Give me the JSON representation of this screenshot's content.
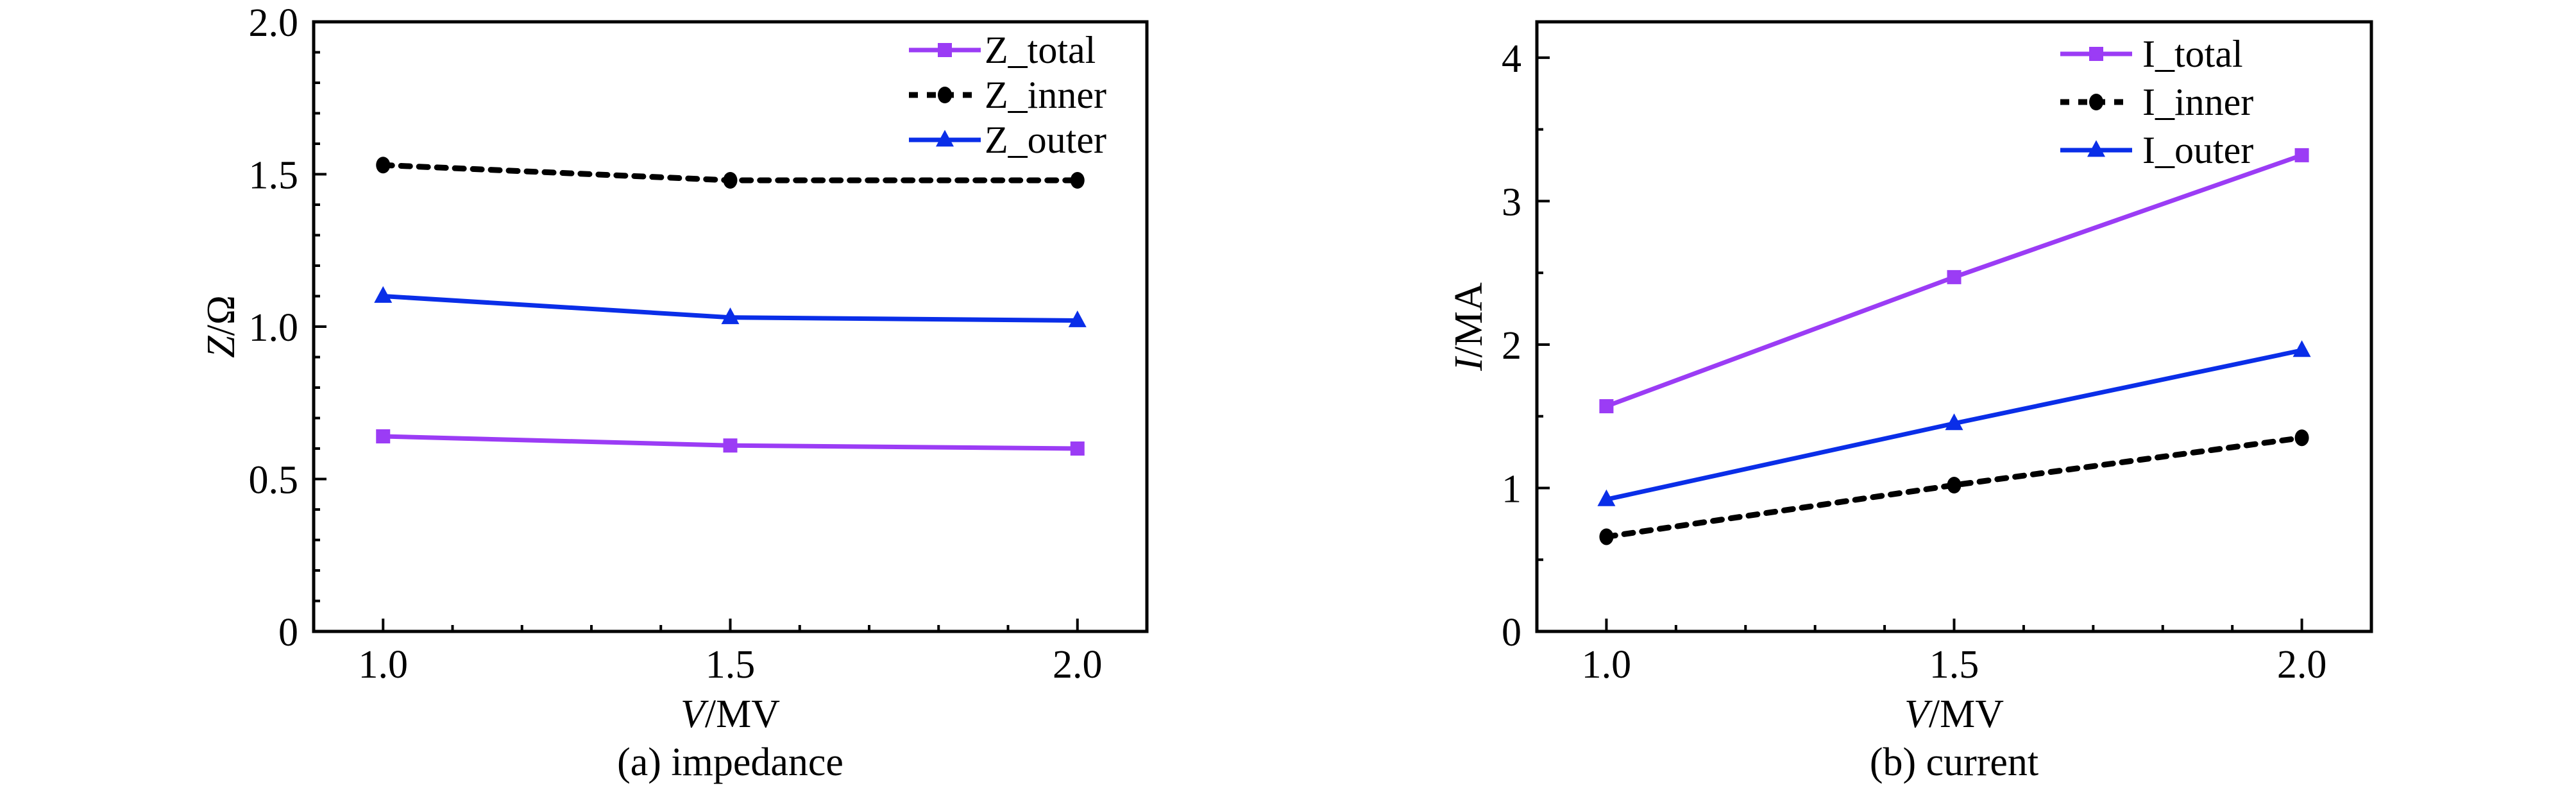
{
  "chart_data": [
    {
      "id": "impedance",
      "type": "line",
      "caption": "(a) impedance",
      "xlabel": {
        "italic": "V",
        "rest": "/MV"
      },
      "ylabel": {
        "italic": "Z",
        "rest": "/Ω"
      },
      "xlim": [
        0.9,
        2.1
      ],
      "ylim": [
        0,
        2.0
      ],
      "x_ticks": [
        1.0,
        1.5,
        2.0
      ],
      "x_tick_labels": [
        "1.0",
        "1.5",
        "2.0"
      ],
      "x_minor_step": 0.1,
      "y_ticks": [
        0,
        0.5,
        1.0,
        1.5,
        2.0
      ],
      "y_tick_labels": [
        "0",
        "0.5",
        "1.0",
        "1.5",
        "2.0"
      ],
      "y_minor_step": 0.1,
      "grid": false,
      "legend_position": "top-right",
      "x": [
        1.0,
        1.5,
        2.0
      ],
      "series": [
        {
          "name": "Z_total",
          "values": [
            0.64,
            0.61,
            0.6
          ],
          "color": "#9b3cf5",
          "marker": "square",
          "line_style": "solid"
        },
        {
          "name": "Z_inner",
          "values": [
            1.53,
            1.48,
            1.48
          ],
          "color": "#000000",
          "marker": "circle",
          "line_style": "dashed"
        },
        {
          "name": "Z_outer",
          "values": [
            1.1,
            1.03,
            1.02
          ],
          "color": "#0a2ee8",
          "marker": "triangle",
          "line_style": "solid"
        }
      ]
    },
    {
      "id": "current",
      "type": "line",
      "caption": "(b) current",
      "xlabel": {
        "italic": "V",
        "rest": "/MV"
      },
      "ylabel": {
        "italic": "I",
        "rest": "/MA"
      },
      "xlim": [
        0.9,
        2.1
      ],
      "ylim": [
        0,
        4.25
      ],
      "x_ticks": [
        1.0,
        1.5,
        2.0
      ],
      "x_tick_labels": [
        "1.0",
        "1.5",
        "2.0"
      ],
      "x_minor_step": 0.1,
      "y_ticks": [
        0,
        1,
        2,
        3,
        4
      ],
      "y_tick_labels": [
        "0",
        "1",
        "2",
        "3",
        "4"
      ],
      "y_minor_step": 0.5,
      "grid": false,
      "legend_position": "top-right",
      "x": [
        1.0,
        1.5,
        2.0
      ],
      "series": [
        {
          "name": "I_total",
          "values": [
            1.57,
            2.47,
            3.32
          ],
          "color": "#9b3cf5",
          "marker": "square",
          "line_style": "solid"
        },
        {
          "name": "I_inner",
          "values": [
            0.66,
            1.02,
            1.35
          ],
          "color": "#000000",
          "marker": "circle",
          "line_style": "dashed"
        },
        {
          "name": "I_outer",
          "values": [
            0.92,
            1.45,
            1.96
          ],
          "color": "#0a2ee8",
          "marker": "triangle",
          "line_style": "solid"
        }
      ]
    }
  ]
}
